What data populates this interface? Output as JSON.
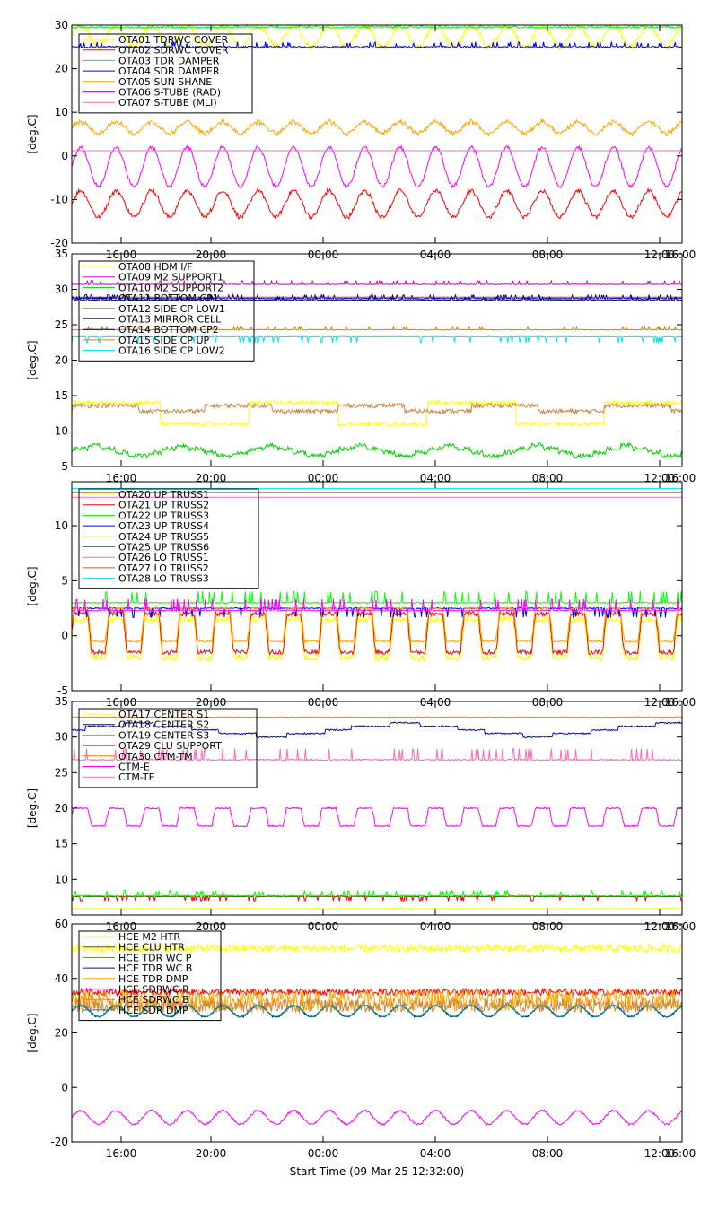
{
  "figure": {
    "time_ticks": [
      "16:00",
      "20:00",
      "00:00",
      "04:00",
      "08:00",
      "12:00",
      "16:00"
    ],
    "x_title": "Start Time (09-Mar-25 12:32:00)"
  },
  "chart_data": [
    {
      "type": "line",
      "ylabel": "[deg.C]",
      "ylim": [
        -20,
        30
      ],
      "yticks": [
        -20,
        -10,
        0,
        10,
        20,
        30
      ],
      "x_hours": [
        0,
        27.5
      ],
      "grid": false,
      "legend_position": "top-left",
      "series": [
        {
          "name": "OTA01 TDRWC COVER",
          "color": "#ffff00",
          "kind": "wave",
          "base": 27.5,
          "amp": 2.5,
          "period": 1.6,
          "noise": 0.7
        },
        {
          "name": "OTA02 SDRWC COVER",
          "color": "#ff0000",
          "kind": "wave",
          "base": -11,
          "amp": 3,
          "period": 1.6,
          "noise": 0.4
        },
        {
          "name": "OTA03 TDR DAMPER",
          "color": "#00ff00",
          "kind": "spiky",
          "base": 29.5,
          "spike": 1.0,
          "noise": 0.2
        },
        {
          "name": "OTA04 SDR DAMPER",
          "color": "#0000ff",
          "kind": "spiky",
          "base": 25,
          "spike": 1.0,
          "noise": 0.2
        },
        {
          "name": "OTA05 SUN SHANE",
          "color": "#ffa500",
          "kind": "wave",
          "base": 6.5,
          "amp": 1.3,
          "period": 1.6,
          "noise": 0.4
        },
        {
          "name": "OTA06 S-TUBE (RAD)",
          "color": "#ff00ff",
          "kind": "wave",
          "base": -2.5,
          "amp": 4.5,
          "period": 1.6,
          "noise": 0.3
        },
        {
          "name": "OTA07 S-TUBE (MLI)",
          "color": "#ff69b4",
          "kind": "flat",
          "base": 1.2,
          "noise": 0.0
        }
      ]
    },
    {
      "type": "line",
      "ylabel": "[deg.C]",
      "ylim": [
        5,
        35
      ],
      "yticks": [
        5,
        10,
        15,
        20,
        25,
        30,
        35
      ],
      "x_hours": [
        0,
        27.5
      ],
      "grid": false,
      "legend_position": "top-left",
      "series": [
        {
          "name": "OTA08 HDM I/F",
          "color": "#ffff00",
          "kind": "step",
          "base": 12.5,
          "amp": 1.5,
          "period": 8,
          "noise": 0.3
        },
        {
          "name": "OTA09 M2 SUPPORT1",
          "color": "#cd00cd",
          "kind": "spiky",
          "base": 30.7,
          "spike": 0.5,
          "noise": 0.05
        },
        {
          "name": "OTA10 M2 SUPPORT2",
          "color": "#00cd00",
          "kind": "wave",
          "base": 7.2,
          "amp": 0.6,
          "period": 4,
          "noise": 0.3
        },
        {
          "name": "OTA11 BOTTOM CP1",
          "color": "#00008b",
          "kind": "spiky",
          "base": 28.7,
          "spike": 0.5,
          "noise": 0.05
        },
        {
          "name": "OTA12 SIDE CP LOW1",
          "color": "#cd8500",
          "kind": "spiky",
          "base": 24.3,
          "spike": 0.4,
          "noise": 0.05
        },
        {
          "name": "OTA13 MIRROR CELL",
          "color": "#b03060",
          "kind": "flat",
          "base": 28.9,
          "noise": 0.0
        },
        {
          "name": "OTA14 BOTTOM CP2",
          "color": "#00008b",
          "kind": "spiky",
          "base": 28.5,
          "spike": 0.4,
          "noise": 0.05
        },
        {
          "name": "OTA15 SIDE CP UP",
          "color": "#cd853f",
          "kind": "step",
          "base": 13.2,
          "amp": 0.4,
          "period": 6,
          "noise": 0.3
        },
        {
          "name": "OTA16 SIDE CP LOW2",
          "color": "#00e5ee",
          "kind": "spiky",
          "base": 23.3,
          "spike": -0.8,
          "noise": 0.05
        }
      ]
    },
    {
      "type": "line",
      "ylabel": "[deg.C]",
      "ylim": [
        -5,
        14
      ],
      "yticks": [
        -5,
        0,
        5,
        10
      ],
      "x_hours": [
        0,
        27.5
      ],
      "grid": false,
      "legend_position": "top-left",
      "series": [
        {
          "name": "OTA20 UP TRUSS1",
          "color": "#ffff00",
          "kind": "square",
          "base": -0.3,
          "amp": 1.8,
          "period": 1.6,
          "noise": 0.3
        },
        {
          "name": "OTA21 UP TRUSS2",
          "color": "#ff0000",
          "kind": "square",
          "base": 0.3,
          "amp": 1.8,
          "period": 1.6,
          "noise": 0.2
        },
        {
          "name": "OTA22 UP TRUSS3",
          "color": "#00ff00",
          "kind": "spiky",
          "base": 3.0,
          "spike": 1.0,
          "noise": 0.05
        },
        {
          "name": "OTA23 UP TRUSS4",
          "color": "#0000ff",
          "kind": "spiky",
          "base": 2.5,
          "spike": -0.8,
          "noise": 0.05
        },
        {
          "name": "OTA24 UP TRUSS5",
          "color": "#ffa500",
          "kind": "square",
          "base": 1.0,
          "amp": 1.5,
          "period": 1.6,
          "noise": 0.1
        },
        {
          "name": "OTA25 UP TRUSS6",
          "color": "#ff00ff",
          "kind": "spiky",
          "base": 2.3,
          "spike": 1.0,
          "noise": 0.05
        },
        {
          "name": "OTA26 LO TRUSS1",
          "color": "#ff69b4",
          "kind": "flat",
          "base": 12.6,
          "noise": 0.0
        },
        {
          "name": "OTA27 LO TRUSS2",
          "color": "#b5651d",
          "kind": "flat",
          "base": 13.0,
          "noise": 0.0
        },
        {
          "name": "OTA28 LO TRUSS3",
          "color": "#00e5ee",
          "kind": "flat",
          "base": 13.4,
          "noise": 0.0
        }
      ]
    },
    {
      "type": "line",
      "ylabel": "[deg.C]",
      "ylim": [
        5,
        35
      ],
      "yticks": [
        10,
        15,
        20,
        25,
        30,
        35
      ],
      "x_hours": [
        0,
        27.5
      ],
      "grid": false,
      "legend_position": "top-left",
      "series": [
        {
          "name": "OTA17 CENTER S1",
          "color": "#ffff00",
          "kind": "flat",
          "base": 5.9,
          "noise": 0.05
        },
        {
          "name": "OTA18 CENTER S2",
          "color": "#0000cd",
          "kind": "wave",
          "base": 31.0,
          "amp": 0.8,
          "period": 12,
          "noise": 0.1
        },
        {
          "name": "OTA19 CENTER S3",
          "color": "#00ff00",
          "kind": "spiky",
          "base": 7.7,
          "spike": 0.7,
          "noise": 0.1
        },
        {
          "name": "OTA29 CLU SUPPORT",
          "color": "#ff0000",
          "kind": "spiky",
          "base": 7.6,
          "spike": -0.6,
          "noise": 0.05
        },
        {
          "name": "OTA30 CTM-TM",
          "color": "#ff7f00",
          "kind": "flat",
          "base": 32.8,
          "noise": 0.05
        },
        {
          "name": "CTM-E",
          "color": "#ff00ff",
          "kind": "square",
          "base": 18.8,
          "amp": 1.3,
          "period": 1.6,
          "noise": 0.1
        },
        {
          "name": "CTM-TE",
          "color": "#ff69b4",
          "kind": "spiky",
          "base": 26.8,
          "spike": 1.5,
          "noise": 0.1
        }
      ]
    },
    {
      "type": "line",
      "ylabel": "[deg.C]",
      "ylim": [
        -20,
        60
      ],
      "yticks": [
        -20,
        0,
        20,
        40,
        60
      ],
      "x_hours": [
        0,
        27.5
      ],
      "grid": false,
      "legend_position": "top-left",
      "series": [
        {
          "name": "HCE M2 HTR",
          "color": "#ffff00",
          "kind": "noisy",
          "base": 51,
          "noise": 1.5
        },
        {
          "name": "HCE CLU HTR",
          "color": "#ff0000",
          "kind": "noisy",
          "base": 35,
          "noise": 1.2
        },
        {
          "name": "HCE TDR WC P",
          "color": "#00cd00",
          "kind": "wave",
          "base": 28,
          "amp": 2,
          "period": 1.6,
          "noise": 0.2
        },
        {
          "name": "HCE TDR WC B",
          "color": "#0000cd",
          "kind": "wave",
          "base": 28,
          "amp": 2.2,
          "period": 1.6,
          "noise": 0.2
        },
        {
          "name": "HCE TDR DMP",
          "color": "#ffa500",
          "kind": "noisy",
          "base": 32,
          "noise": 4
        },
        {
          "name": "HCE SDRWC P",
          "color": "#ff00ff",
          "kind": "wave",
          "base": -11,
          "amp": 2.5,
          "period": 1.6,
          "noise": 0.3
        },
        {
          "name": "HCE SDRWC B",
          "color": "#cd853f",
          "kind": "noisy",
          "base": 30,
          "noise": 2.5
        },
        {
          "name": "HCE SDR DMP",
          "color": "#008b8b",
          "kind": "wave",
          "base": 28,
          "amp": 2,
          "period": 1.6,
          "noise": 0.1
        }
      ]
    }
  ]
}
